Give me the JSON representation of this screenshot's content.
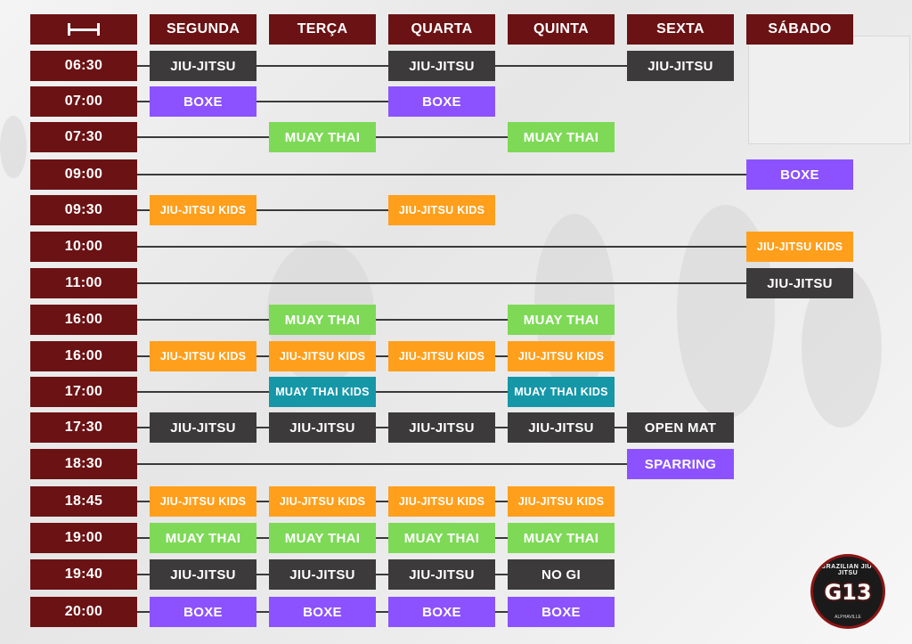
{
  "colors": {
    "maroon": "#6b1214",
    "dark": "#3c3a3a",
    "purple": "#8c52ff",
    "green": "#7ed957",
    "orange": "#ff9f1c",
    "teal": "#1597a8"
  },
  "header": {
    "icon": "duration-icon",
    "days": [
      "SEGUNDA",
      "TERÇA",
      "QUARTA",
      "QUINTA",
      "SEXTA",
      "SÁBADO"
    ]
  },
  "rows": [
    {
      "time": "06:30",
      "classes": [
        {
          "day": 0,
          "label": "JIU-JITSU",
          "kind": "dark"
        },
        {
          "day": 2,
          "label": "JIU-JITSU",
          "kind": "dark"
        },
        {
          "day": 4,
          "label": "JIU-JITSU",
          "kind": "dark"
        }
      ]
    },
    {
      "time": "07:00",
      "classes": [
        {
          "day": 0,
          "label": "BOXE",
          "kind": "purple"
        },
        {
          "day": 2,
          "label": "BOXE",
          "kind": "purple"
        }
      ]
    },
    {
      "time": "07:30",
      "classes": [
        {
          "day": 1,
          "label": "MUAY THAI",
          "kind": "green"
        },
        {
          "day": 3,
          "label": "MUAY THAI",
          "kind": "green"
        }
      ]
    },
    {
      "time": "09:00",
      "classes": [
        {
          "day": 5,
          "label": "BOXE",
          "kind": "purple"
        }
      ]
    },
    {
      "time": "09:30",
      "classes": [
        {
          "day": 0,
          "label": "JIU-JITSU KIDS",
          "kind": "orange"
        },
        {
          "day": 2,
          "label": "JIU-JITSU KIDS",
          "kind": "orange"
        }
      ]
    },
    {
      "time": "10:00",
      "classes": [
        {
          "day": 5,
          "label": "JIU-JITSU KIDS",
          "kind": "orange"
        }
      ]
    },
    {
      "time": "11:00",
      "classes": [
        {
          "day": 5,
          "label": "JIU-JITSU",
          "kind": "dark"
        }
      ]
    },
    {
      "time": "16:00",
      "classes": [
        {
          "day": 1,
          "label": "MUAY THAI",
          "kind": "green"
        },
        {
          "day": 3,
          "label": "MUAY THAI",
          "kind": "green"
        }
      ]
    },
    {
      "time": "16:00",
      "classes": [
        {
          "day": 0,
          "label": "JIU-JITSU KIDS",
          "kind": "orange"
        },
        {
          "day": 1,
          "label": "JIU-JITSU KIDS",
          "kind": "orange"
        },
        {
          "day": 2,
          "label": "JIU-JITSU KIDS",
          "kind": "orange"
        },
        {
          "day": 3,
          "label": "JIU-JITSU KIDS",
          "kind": "orange"
        }
      ]
    },
    {
      "time": "17:00",
      "classes": [
        {
          "day": 1,
          "label": "MUAY THAI KIDS",
          "kind": "teal"
        },
        {
          "day": 3,
          "label": "MUAY THAI KIDS",
          "kind": "teal"
        }
      ]
    },
    {
      "time": "17:30",
      "classes": [
        {
          "day": 0,
          "label": "JIU-JITSU",
          "kind": "dark"
        },
        {
          "day": 1,
          "label": "JIU-JITSU",
          "kind": "dark"
        },
        {
          "day": 2,
          "label": "JIU-JITSU",
          "kind": "dark"
        },
        {
          "day": 3,
          "label": "JIU-JITSU",
          "kind": "dark"
        },
        {
          "day": 4,
          "label": "OPEN MAT",
          "kind": "dark"
        }
      ]
    },
    {
      "time": "18:30",
      "classes": [
        {
          "day": 4,
          "label": "SPARRING",
          "kind": "purple"
        }
      ]
    },
    {
      "time": "18:45",
      "classes": [
        {
          "day": 0,
          "label": "JIU-JITSU KIDS",
          "kind": "orange"
        },
        {
          "day": 1,
          "label": "JIU-JITSU KIDS",
          "kind": "orange"
        },
        {
          "day": 2,
          "label": "JIU-JITSU KIDS",
          "kind": "orange"
        },
        {
          "day": 3,
          "label": "JIU-JITSU KIDS",
          "kind": "orange"
        }
      ]
    },
    {
      "time": "19:00",
      "classes": [
        {
          "day": 0,
          "label": "MUAY THAI",
          "kind": "green"
        },
        {
          "day": 1,
          "label": "MUAY THAI",
          "kind": "green"
        },
        {
          "day": 2,
          "label": "MUAY THAI",
          "kind": "green"
        },
        {
          "day": 3,
          "label": "MUAY THAI",
          "kind": "green"
        }
      ]
    },
    {
      "time": "19:40",
      "classes": [
        {
          "day": 0,
          "label": "JIU-JITSU",
          "kind": "dark"
        },
        {
          "day": 1,
          "label": "JIU-JITSU",
          "kind": "dark"
        },
        {
          "day": 2,
          "label": "JIU-JITSU",
          "kind": "dark"
        },
        {
          "day": 3,
          "label": "NO GI",
          "kind": "dark"
        }
      ]
    },
    {
      "time": "20:00",
      "classes": [
        {
          "day": 0,
          "label": "BOXE",
          "kind": "purple"
        },
        {
          "day": 1,
          "label": "BOXE",
          "kind": "purple"
        },
        {
          "day": 2,
          "label": "BOXE",
          "kind": "purple"
        },
        {
          "day": 3,
          "label": "BOXE",
          "kind": "purple"
        }
      ]
    }
  ],
  "logo": {
    "top_text": "BRAZILIAN JIU-JITSU",
    "mark": "G13",
    "bottom_text": "ALPHAVILLE"
  }
}
